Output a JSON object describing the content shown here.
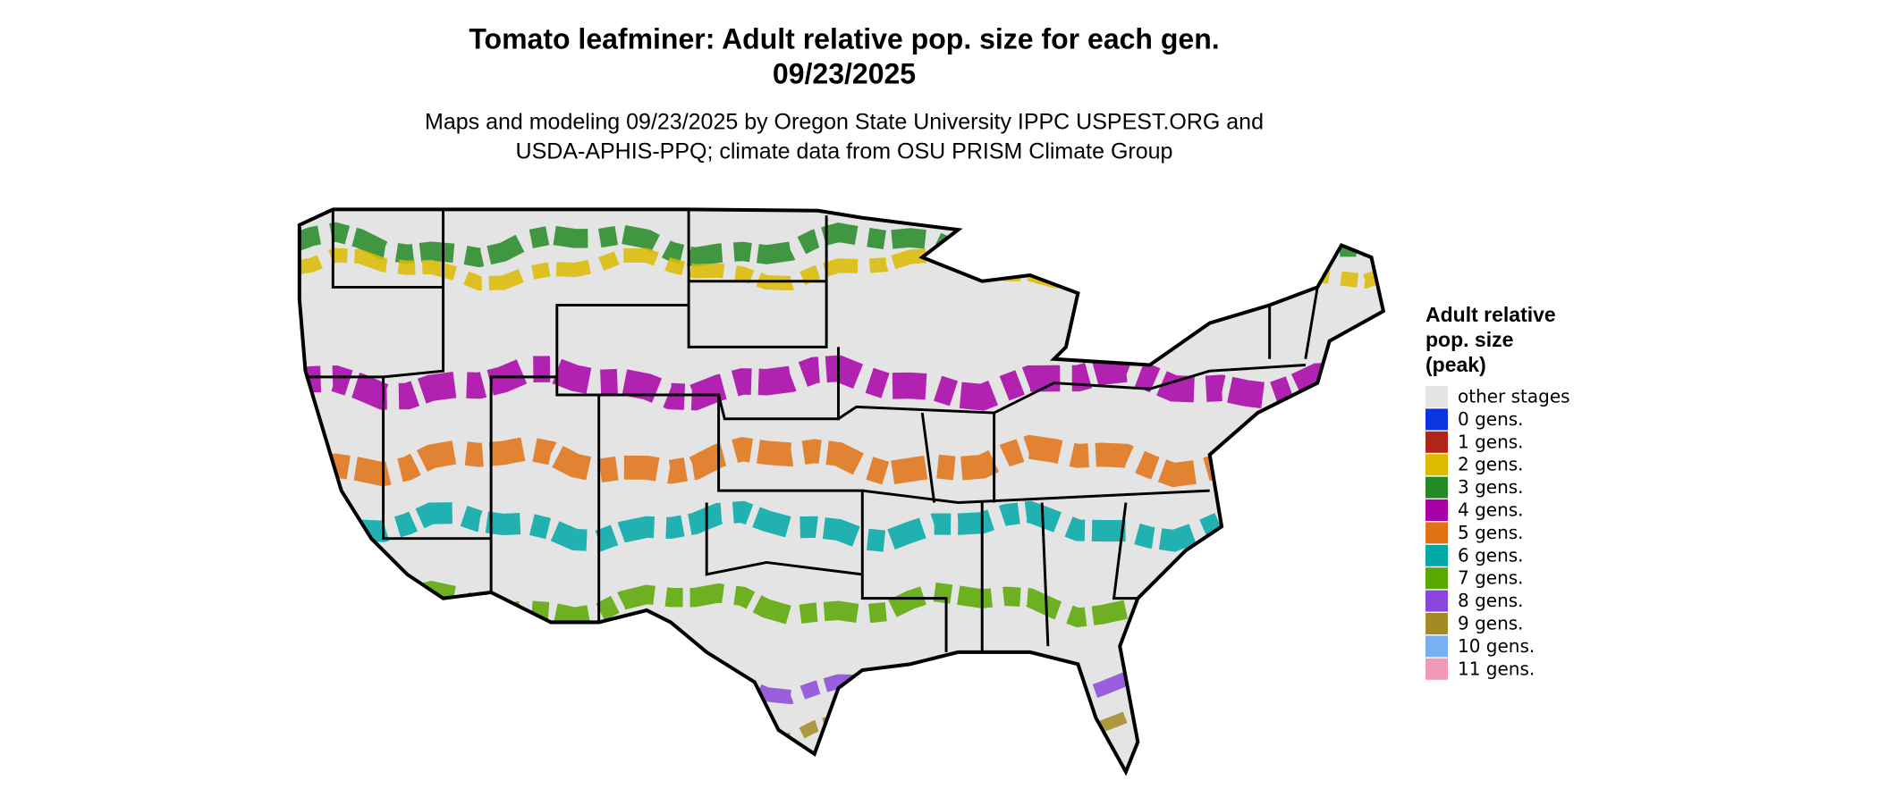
{
  "header": {
    "title_lines": [
      "Tomato leafminer: Adult relative pop. size for each gen.",
      "09/23/2025"
    ],
    "subtitle_lines": [
      "Maps and modeling 09/23/2025 by Oregon State University IPPC USPEST.ORG and",
      "USDA-APHIS-PPQ; climate data from OSU PRISM Climate Group"
    ]
  },
  "legend": {
    "title_lines": [
      "Adult relative",
      "pop. size",
      "(peak)"
    ],
    "items": [
      {
        "label": "other stages",
        "color": "#e4e4e4"
      },
      {
        "label": "0 gens.",
        "color": "#0a35e0"
      },
      {
        "label": "1 gens.",
        "color": "#b0241a"
      },
      {
        "label": "2 gens.",
        "color": "#dcbb00"
      },
      {
        "label": "3 gens.",
        "color": "#258a25"
      },
      {
        "label": "4 gens.",
        "color": "#a800a8"
      },
      {
        "label": "5 gens.",
        "color": "#e07214"
      },
      {
        "label": "6 gens.",
        "color": "#00a8a8"
      },
      {
        "label": "7 gens.",
        "color": "#58a800"
      },
      {
        "label": "8 gens.",
        "color": "#8a46dc"
      },
      {
        "label": "9 gens.",
        "color": "#a38a22"
      },
      {
        "label": "10 gens.",
        "color": "#78b0f0"
      },
      {
        "label": "11 gens.",
        "color": "#f09ab8"
      }
    ]
  }
}
